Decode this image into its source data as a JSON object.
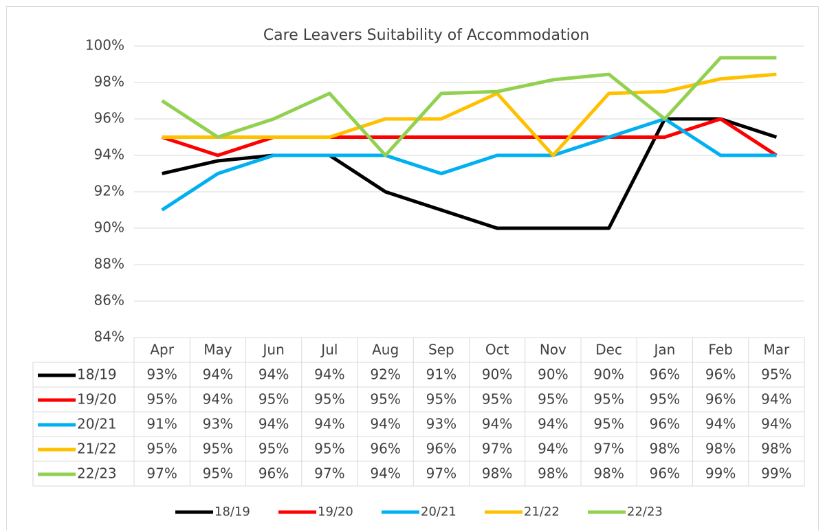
{
  "chart_data": {
    "type": "line",
    "title": "Care Leavers Suitability of Accommodation",
    "categories": [
      "Apr",
      "May",
      "Jun",
      "Jul",
      "Aug",
      "Sep",
      "Oct",
      "Nov",
      "Dec",
      "Jan",
      "Feb",
      "Mar"
    ],
    "ylim": [
      84,
      100
    ],
    "yticks": [
      {
        "value": 84,
        "label": "84%"
      },
      {
        "value": 86,
        "label": "86%"
      },
      {
        "value": 88,
        "label": "88%"
      },
      {
        "value": 90,
        "label": "90%"
      },
      {
        "value": 92,
        "label": "92%"
      },
      {
        "value": 94,
        "label": "94%"
      },
      {
        "value": 96,
        "label": "96%"
      },
      {
        "value": 98,
        "label": "98%"
      },
      {
        "value": 100,
        "label": "100%"
      }
    ],
    "grid": true,
    "legend": "bottom",
    "series": [
      {
        "name": "18/19",
        "color": "#000000",
        "values": [
          93,
          93.7,
          94,
          94,
          92,
          91,
          90,
          90,
          90,
          96,
          96,
          95
        ],
        "value_labels": [
          "93%",
          "94%",
          "94%",
          "94%",
          "92%",
          "91%",
          "90%",
          "90%",
          "90%",
          "96%",
          "96%",
          "95%"
        ]
      },
      {
        "name": "19/20",
        "color": "#ff0000",
        "values": [
          95,
          94,
          95,
          95,
          95,
          95,
          95,
          95,
          95,
          95,
          96,
          94
        ],
        "value_labels": [
          "95%",
          "94%",
          "95%",
          "95%",
          "95%",
          "95%",
          "95%",
          "95%",
          "95%",
          "95%",
          "96%",
          "94%"
        ]
      },
      {
        "name": "20/21",
        "color": "#00b0f0",
        "values": [
          91,
          93,
          94,
          94,
          94,
          93,
          94,
          94,
          95,
          96,
          94,
          94
        ],
        "value_labels": [
          "91%",
          "93%",
          "94%",
          "94%",
          "94%",
          "93%",
          "94%",
          "94%",
          "95%",
          "96%",
          "94%",
          "94%"
        ]
      },
      {
        "name": "21/22",
        "color": "#ffc000",
        "values": [
          95,
          95,
          95,
          95,
          96,
          96,
          97.4,
          94,
          97.4,
          97.5,
          98.2,
          98.45
        ],
        "value_labels": [
          "95%",
          "95%",
          "95%",
          "95%",
          "96%",
          "96%",
          "97%",
          "94%",
          "97%",
          "98%",
          "98%",
          "98%"
        ]
      },
      {
        "name": "22/23",
        "color": "#92d050",
        "values": [
          97,
          95,
          96,
          97.4,
          94,
          97.4,
          97.5,
          98.15,
          98.45,
          96,
          99.36,
          99.36
        ],
        "value_labels": [
          "97%",
          "95%",
          "96%",
          "97%",
          "94%",
          "97%",
          "98%",
          "98%",
          "98%",
          "96%",
          "99%",
          "99%"
        ]
      }
    ]
  }
}
